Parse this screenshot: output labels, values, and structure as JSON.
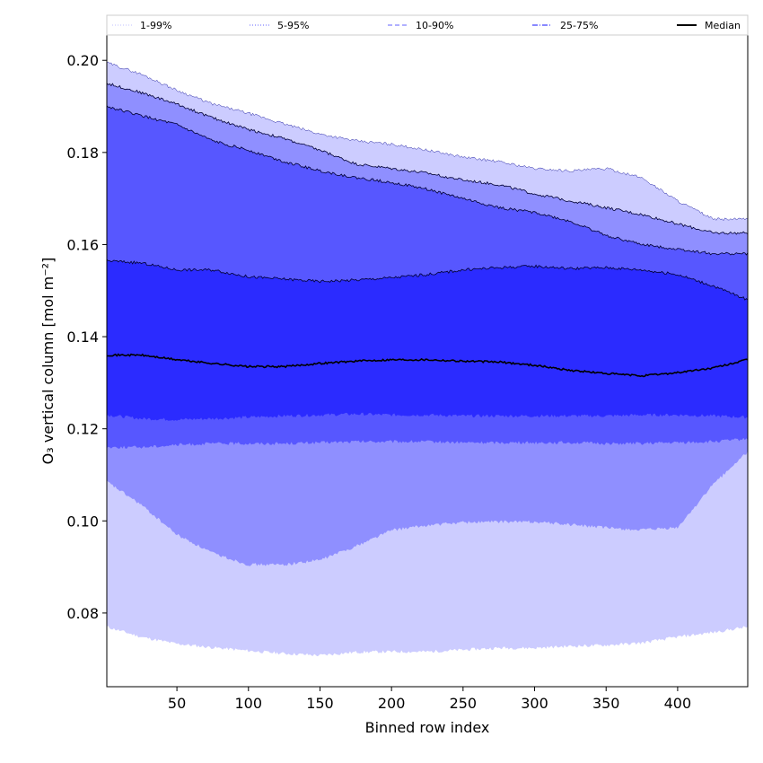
{
  "chart_data": {
    "type": "area",
    "title": "",
    "xlabel": "Binned row index",
    "ylabel": "O₃ vertical column [mol m⁻²]",
    "xlim": [
      1,
      449
    ],
    "ylim": [
      0.064,
      0.2055
    ],
    "xticks": [
      50,
      100,
      150,
      200,
      250,
      300,
      350,
      400
    ],
    "yticks": [
      0.08,
      0.1,
      0.12,
      0.14,
      0.16,
      0.18,
      0.2
    ],
    "ytick_labels": [
      "0.08",
      "0.10",
      "0.12",
      "0.14",
      "0.16",
      "0.18",
      "0.20"
    ],
    "legend": {
      "position": "top",
      "entries": [
        {
          "label": "1-99%",
          "style": "dotted",
          "color": "#ccccff"
        },
        {
          "label": "5-95%",
          "style": "dotted",
          "color": "#8080ff"
        },
        {
          "label": "10-90%",
          "style": "dashed",
          "color": "#8080ff"
        },
        {
          "label": "25-75%",
          "style": "dashdot",
          "color": "#4040ff"
        },
        {
          "label": "Median",
          "style": "solid",
          "color": "#000000"
        }
      ]
    },
    "x": [
      1,
      25,
      50,
      75,
      100,
      125,
      150,
      175,
      200,
      225,
      250,
      275,
      300,
      325,
      350,
      375,
      400,
      425,
      449
    ],
    "bands": [
      {
        "name": "1-99%",
        "color": "#ccccff",
        "lower": [
          0.077,
          0.0748,
          0.0733,
          0.0725,
          0.0718,
          0.0712,
          0.0708,
          0.0715,
          0.0716,
          0.0716,
          0.072,
          0.0724,
          0.0724,
          0.0728,
          0.073,
          0.0735,
          0.0748,
          0.0758,
          0.077
        ],
        "upper": [
          0.1995,
          0.197,
          0.1935,
          0.1905,
          0.1885,
          0.1862,
          0.184,
          0.1825,
          0.1818,
          0.1805,
          0.179,
          0.178,
          0.1765,
          0.176,
          0.1765,
          0.1745,
          0.1695,
          0.1655,
          0.1655
        ]
      },
      {
        "name": "5-95%",
        "color": "#8f8fff",
        "lower": [
          0.1085,
          0.1035,
          0.097,
          0.093,
          0.0905,
          0.0905,
          0.0915,
          0.0945,
          0.098,
          0.099,
          0.0997,
          0.0998,
          0.0998,
          0.0992,
          0.0985,
          0.098,
          0.0985,
          0.108,
          0.115
        ],
        "upper": [
          0.195,
          0.193,
          0.1905,
          0.1875,
          0.185,
          0.183,
          0.1805,
          0.1775,
          0.1765,
          0.1755,
          0.174,
          0.173,
          0.171,
          0.1695,
          0.168,
          0.1665,
          0.1645,
          0.1625,
          0.1625
        ]
      },
      {
        "name": "10-90%",
        "color": "#5757ff",
        "lower": [
          0.116,
          0.116,
          0.1165,
          0.1168,
          0.1168,
          0.1168,
          0.117,
          0.1172,
          0.1172,
          0.1172,
          0.117,
          0.117,
          0.117,
          0.117,
          0.1168,
          0.1168,
          0.117,
          0.1172,
          0.1178
        ],
        "upper": [
          0.19,
          0.188,
          0.186,
          0.1825,
          0.1805,
          0.178,
          0.176,
          0.1745,
          0.1735,
          0.172,
          0.17,
          0.168,
          0.167,
          0.165,
          0.162,
          0.16,
          0.159,
          0.158,
          0.158
        ]
      },
      {
        "name": "25-75%",
        "color": "#2b2bff",
        "lower": [
          0.123,
          0.1222,
          0.122,
          0.1222,
          0.1225,
          0.1228,
          0.123,
          0.1232,
          0.123,
          0.123,
          0.1228,
          0.1228,
          0.1228,
          0.1228,
          0.1228,
          0.123,
          0.123,
          0.1228,
          0.1225
        ],
        "upper": [
          0.1565,
          0.156,
          0.1545,
          0.1545,
          0.153,
          0.1525,
          0.152,
          0.1523,
          0.1528,
          0.1535,
          0.1545,
          0.155,
          0.1553,
          0.1548,
          0.155,
          0.1545,
          0.1535,
          0.151,
          0.148
        ]
      }
    ],
    "median": {
      "name": "Median",
      "color": "#000000",
      "values": [
        0.136,
        0.136,
        0.135,
        0.1342,
        0.1335,
        0.1335,
        0.1342,
        0.1347,
        0.135,
        0.135,
        0.1347,
        0.1345,
        0.1338,
        0.1327,
        0.132,
        0.1315,
        0.1322,
        0.1332,
        0.135
      ]
    }
  }
}
